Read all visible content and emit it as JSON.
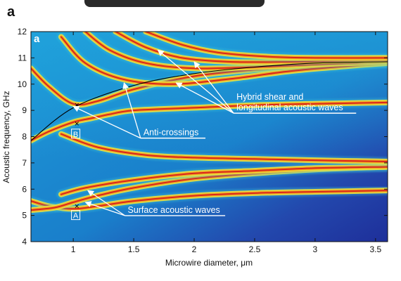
{
  "chart_data": {
    "type": "heatmap",
    "panel_label": "a",
    "inner_label": "a",
    "xlabel": "Microwire diameter, μm",
    "ylabel": "Acoustic frequency, GHz",
    "xlim": [
      0.65,
      3.6
    ],
    "ylim": [
      4,
      12
    ],
    "x_ticks": [
      "1",
      "1.5",
      "2",
      "2.5",
      "3",
      "3.5"
    ],
    "x_tick_values": [
      1,
      1.5,
      2,
      2.5,
      3,
      3.5
    ],
    "y_ticks": [
      "4",
      "5",
      "6",
      "7",
      "8",
      "9",
      "10",
      "11",
      "12"
    ],
    "y_tick_values": [
      4,
      5,
      6,
      7,
      8,
      9,
      10,
      11,
      12
    ],
    "grid": false,
    "colormap": [
      "#1c2e98",
      "#1f8fd6",
      "#39c7d8",
      "#f2e23a",
      "#f39c1c",
      "#d8261e"
    ],
    "bands": [
      {
        "x": [
          0.65,
          0.8,
          1.0,
          1.2,
          1.5,
          2.0,
          2.5,
          3.0,
          3.6
        ],
        "y": [
          5.55,
          5.35,
          5.25,
          5.35,
          5.55,
          5.75,
          5.85,
          5.9,
          5.95
        ]
      },
      {
        "x": [
          0.65,
          0.85,
          1.0,
          1.2,
          1.5,
          2.0,
          2.5,
          3.0,
          3.6
        ],
        "y": [
          5.2,
          5.3,
          5.5,
          5.75,
          6.05,
          6.4,
          6.6,
          6.75,
          6.85
        ]
      },
      {
        "x": [
          0.9,
          1.1,
          1.5,
          2.0,
          2.5,
          3.0,
          3.6
        ],
        "y": [
          5.8,
          6.05,
          6.35,
          6.6,
          6.7,
          6.8,
          6.85
        ]
      },
      {
        "x": [
          0.9,
          1.2,
          1.6,
          2.0,
          2.5,
          3.0,
          3.6
        ],
        "y": [
          8.1,
          7.6,
          7.3,
          7.2,
          7.15,
          7.1,
          7.05
        ]
      },
      {
        "x": [
          0.65,
          0.8,
          1.0,
          1.15,
          1.3,
          1.5,
          2.0,
          2.5,
          3.0,
          3.6
        ],
        "y": [
          7.85,
          8.2,
          8.55,
          8.7,
          8.85,
          9.0,
          9.1,
          9.2,
          9.25,
          9.3
        ]
      },
      {
        "x": [
          0.65,
          0.8,
          1.0,
          1.2,
          1.5,
          2.0,
          2.5,
          3.0,
          3.6
        ],
        "y": [
          10.6,
          9.9,
          9.25,
          9.35,
          9.8,
          10.3,
          10.55,
          10.7,
          10.8
        ]
      },
      {
        "x": [
          0.9,
          1.1,
          1.4,
          1.8,
          2.3,
          2.8,
          3.3,
          3.6
        ],
        "y": [
          11.8,
          10.8,
          10.2,
          10.0,
          10.2,
          10.5,
          10.7,
          10.8
        ]
      },
      {
        "x": [
          1.1,
          1.3,
          1.6,
          2.0,
          2.5,
          3.0,
          3.6
        ],
        "y": [
          12.0,
          11.3,
          10.8,
          10.6,
          10.65,
          10.75,
          10.85
        ]
      },
      {
        "x": [
          1.35,
          1.6,
          1.9,
          2.3,
          2.8,
          3.3,
          3.6
        ],
        "y": [
          12.0,
          11.4,
          11.0,
          10.85,
          10.85,
          10.9,
          10.9
        ]
      },
      {
        "x": [
          1.6,
          1.9,
          2.2,
          2.6,
          3.0,
          3.6
        ],
        "y": [
          12.0,
          11.5,
          11.2,
          11.05,
          11.0,
          11.0
        ]
      }
    ],
    "black_curve": {
      "x": [
        0.65,
        1.0,
        1.5,
        2.0,
        2.5,
        3.0,
        3.6
      ],
      "y": [
        7.85,
        9.1,
        9.95,
        10.4,
        10.65,
        10.8,
        10.85
      ]
    },
    "markers": [
      {
        "x": 1.03,
        "y": 9.2
      },
      {
        "x": 1.03,
        "y": 8.5
      },
      {
        "x": 1.03,
        "y": 5.35
      }
    ],
    "annotations": [
      {
        "id": "hybrid",
        "lines": [
          "Hybrid shear and",
          "longitudinal acoustic waves"
        ],
        "x": 2.35,
        "y": 9.0,
        "arrow_targets": [
          {
            "x": 1.7,
            "y": 11.3
          },
          {
            "x": 2.0,
            "y": 10.85
          },
          {
            "x": 1.85,
            "y": 10.05
          }
        ]
      },
      {
        "id": "anti",
        "lines": [
          "Anti-crossings"
        ],
        "x": 1.58,
        "y": 8.05,
        "arrow_targets": [
          {
            "x": 1.0,
            "y": 9.15
          },
          {
            "x": 1.42,
            "y": 10.05
          }
        ]
      },
      {
        "id": "surface",
        "lines": [
          "Surface acoustic waves"
        ],
        "x": 1.45,
        "y": 5.1,
        "arrow_targets": [
          {
            "x": 1.12,
            "y": 5.95
          },
          {
            "x": 1.1,
            "y": 5.5
          }
        ]
      }
    ],
    "box_labels": [
      {
        "text": "B",
        "x": 1.02,
        "y": 8.1
      },
      {
        "text": "A",
        "x": 1.02,
        "y": 5.0
      }
    ]
  }
}
